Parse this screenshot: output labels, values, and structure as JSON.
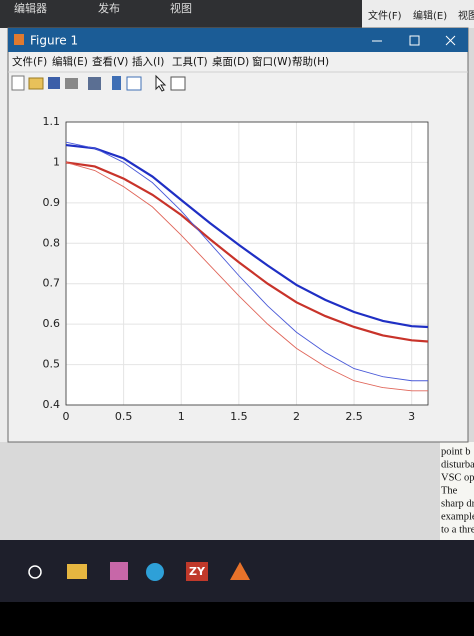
{
  "background_app": {
    "tabs": [
      "编辑器",
      "发布",
      "视图"
    ],
    "right_menu": [
      "文件(F)",
      "编辑(E)",
      "视图"
    ]
  },
  "window": {
    "title": "Figure 1",
    "menu": [
      "文件(F)",
      "编辑(E)",
      "查看(V)",
      "插入(I)",
      "工具(T)",
      "桌面(D)",
      "窗口(W)",
      "帮助(H)"
    ]
  },
  "document_fragments": [
    "point b",
    "disturba",
    "VSC op",
    "The",
    "sharp dr",
    "example",
    "to a thre"
  ],
  "taskbar": {
    "app_label": "ZY"
  },
  "chart_data": {
    "type": "line",
    "x": [
      0,
      0.25,
      0.5,
      0.75,
      1,
      1.25,
      1.5,
      1.75,
      2,
      2.25,
      2.5,
      2.75,
      3,
      3.1416
    ],
    "series": [
      {
        "color": "#1f2fc4",
        "width": 2.2,
        "values": [
          1.043,
          1.035,
          1.01,
          0.965,
          0.907,
          0.85,
          0.796,
          0.745,
          0.697,
          0.66,
          0.63,
          0.608,
          0.595,
          0.593
        ]
      },
      {
        "color": "#c8332a",
        "width": 2.2,
        "values": [
          1.0,
          0.99,
          0.96,
          0.92,
          0.87,
          0.81,
          0.753,
          0.7,
          0.654,
          0.62,
          0.593,
          0.572,
          0.56,
          0.557
        ]
      },
      {
        "color": "#4a5ad8",
        "width": 0.9,
        "values": [
          1.05,
          1.035,
          1.0,
          0.95,
          0.88,
          0.8,
          0.72,
          0.645,
          0.58,
          0.53,
          0.49,
          0.47,
          0.46,
          0.46
        ]
      },
      {
        "color": "#e0665a",
        "width": 0.9,
        "values": [
          1.0,
          0.98,
          0.94,
          0.89,
          0.82,
          0.745,
          0.67,
          0.6,
          0.54,
          0.495,
          0.46,
          0.443,
          0.435,
          0.435
        ]
      }
    ],
    "xlim": [
      0,
      3.1416
    ],
    "xticks": [
      0,
      0.5,
      1,
      1.5,
      2,
      2.5,
      3
    ],
    "ylim": [
      0.4,
      1.1
    ],
    "yticks": [
      0.4,
      0.5,
      0.6,
      0.7,
      0.8,
      0.9,
      1,
      1.1
    ],
    "grid": true
  }
}
